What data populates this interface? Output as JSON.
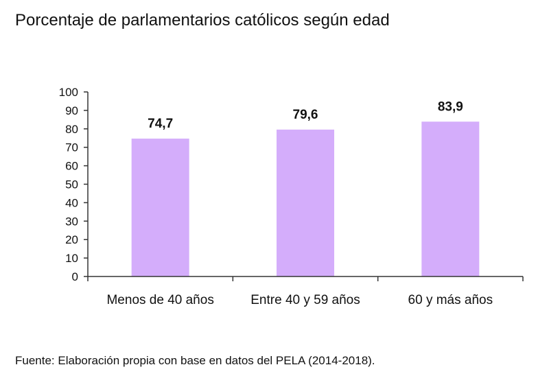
{
  "title": "Porcentaje de parlamentarios católicos según edad",
  "source": "Fuente: Elaboración propia con base en datos del PELA (2014-2018).",
  "colors": {
    "bar": "#d4adfb",
    "axis": "#333333"
  },
  "chart_data": {
    "type": "bar",
    "title": "Porcentaje de parlamentarios católicos según edad",
    "categories": [
      "Menos de 40 años",
      "Entre 40 y 59 años",
      "60 y más años"
    ],
    "values": [
      74.7,
      79.6,
      83.9
    ],
    "value_labels": [
      "74,7",
      "79,6",
      "83,9"
    ],
    "xlabel": "",
    "ylabel": "",
    "ylim": [
      0,
      100
    ],
    "yticks": [
      0,
      10,
      20,
      30,
      40,
      50,
      60,
      70,
      80,
      90,
      100
    ],
    "grid": false,
    "legend": "none"
  }
}
